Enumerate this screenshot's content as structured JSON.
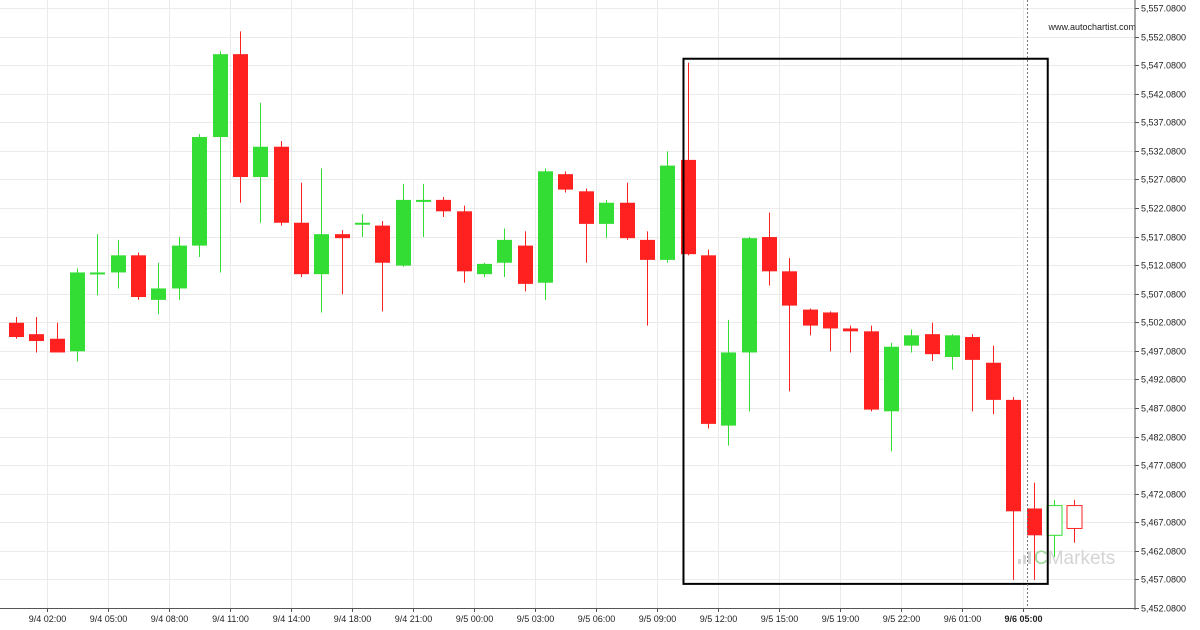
{
  "site": "www.autochartist.com",
  "watermark": {
    "brand_accent": "C",
    "brand_rest": "Markets"
  },
  "colors": {
    "up": "#33dd33",
    "down": "#ff2020",
    "pattern_box": "#000000",
    "grid": "#ebebeb",
    "current_candle_up": "#33dd33",
    "current_candle_down": "#ff2020"
  },
  "chart_data": {
    "type": "candlestick",
    "grid": true,
    "y_axis": {
      "position": "right",
      "ylim": [
        5452.08,
        5557.08
      ],
      "ticks": [
        "5,557.0800",
        "5,552.0800",
        "5,547.0800",
        "5,542.0800",
        "5,537.0800",
        "5,532.0800",
        "5,527.0800",
        "5,522.0800",
        "5,517.0800",
        "5,512.0800",
        "5,507.0800",
        "5,502.0800",
        "5,497.0800",
        "5,492.0800",
        "5,487.0800",
        "5,482.0800",
        "5,477.0800",
        "5,472.0800",
        "5,467.0800",
        "5,462.0800",
        "5,457.0800",
        "5,452.0800"
      ],
      "tick_values": [
        5557.08,
        5552.08,
        5547.08,
        5542.08,
        5537.08,
        5532.08,
        5527.08,
        5522.08,
        5517.08,
        5512.08,
        5507.08,
        5502.08,
        5497.08,
        5492.08,
        5487.08,
        5482.08,
        5477.08,
        5472.08,
        5467.08,
        5462.08,
        5457.08,
        5452.08
      ]
    },
    "x_axis": {
      "labels": [
        {
          "index": 1.5,
          "text": "9/4 02:00",
          "bold": false
        },
        {
          "index": 4.5,
          "text": "9/4 05:00",
          "bold": false
        },
        {
          "index": 7.5,
          "text": "9/4 08:00",
          "bold": false
        },
        {
          "index": 10.5,
          "text": "9/4 11:00",
          "bold": false
        },
        {
          "index": 13.5,
          "text": "9/4 14:00",
          "bold": false
        },
        {
          "index": 16.5,
          "text": "9/4 18:00",
          "bold": false
        },
        {
          "index": 19.5,
          "text": "9/4 21:00",
          "bold": false
        },
        {
          "index": 22.5,
          "text": "9/5 00:00",
          "bold": false
        },
        {
          "index": 25.5,
          "text": "9/5 03:00",
          "bold": false
        },
        {
          "index": 28.5,
          "text": "9/5 06:00",
          "bold": false
        },
        {
          "index": 31.5,
          "text": "9/5 09:00",
          "bold": false
        },
        {
          "index": 34.5,
          "text": "9/5 12:00",
          "bold": false
        },
        {
          "index": 37.5,
          "text": "9/5 15:00",
          "bold": false
        },
        {
          "index": 40.5,
          "text": "9/5 19:00",
          "bold": false
        },
        {
          "index": 43.5,
          "text": "9/5 22:00",
          "bold": false
        },
        {
          "index": 46.5,
          "text": "9/6 01:00",
          "bold": false
        },
        {
          "index": 49.5,
          "text": "9/6 05:00",
          "bold": true
        }
      ]
    },
    "candles": [
      {
        "o": 5502.0,
        "h": 5503.0,
        "l": 5499.2,
        "c": 5499.5
      },
      {
        "o": 5500.0,
        "h": 5503.0,
        "l": 5496.8,
        "c": 5498.8
      },
      {
        "o": 5499.2,
        "h": 5502.0,
        "l": 5496.8,
        "c": 5496.8
      },
      {
        "o": 5497.0,
        "h": 5511.5,
        "l": 5495.2,
        "c": 5510.8
      },
      {
        "o": 5510.8,
        "h": 5517.5,
        "l": 5506.8,
        "c": 5510.8
      },
      {
        "o": 5510.8,
        "h": 5516.5,
        "l": 5508.0,
        "c": 5513.8
      },
      {
        "o": 5513.8,
        "h": 5514.3,
        "l": 5506.0,
        "c": 5506.5
      },
      {
        "o": 5506.0,
        "h": 5512.5,
        "l": 5503.5,
        "c": 5508.0
      },
      {
        "o": 5508.0,
        "h": 5517.0,
        "l": 5506.0,
        "c": 5515.5
      },
      {
        "o": 5515.5,
        "h": 5535.0,
        "l": 5513.5,
        "c": 5534.5
      },
      {
        "o": 5534.5,
        "h": 5549.5,
        "l": 5510.8,
        "c": 5549.0
      },
      {
        "o": 5549.0,
        "h": 5553.0,
        "l": 5523.0,
        "c": 5527.5
      },
      {
        "o": 5527.5,
        "h": 5540.5,
        "l": 5519.5,
        "c": 5532.8
      },
      {
        "o": 5532.8,
        "h": 5533.8,
        "l": 5519.0,
        "c": 5519.5
      },
      {
        "o": 5519.5,
        "h": 5526.5,
        "l": 5510.0,
        "c": 5510.5
      },
      {
        "o": 5510.5,
        "h": 5529.0,
        "l": 5503.8,
        "c": 5517.5
      },
      {
        "o": 5517.5,
        "h": 5518.2,
        "l": 5507.0,
        "c": 5516.8
      },
      {
        "o": 5519.5,
        "h": 5521.0,
        "l": 5517.0,
        "c": 5519.5
      },
      {
        "o": 5519.0,
        "h": 5519.8,
        "l": 5504.0,
        "c": 5512.5
      },
      {
        "o": 5512.0,
        "h": 5526.3,
        "l": 5511.8,
        "c": 5523.5
      },
      {
        "o": 5523.5,
        "h": 5526.3,
        "l": 5517.0,
        "c": 5523.5
      },
      {
        "o": 5523.5,
        "h": 5524.0,
        "l": 5520.5,
        "c": 5521.5
      },
      {
        "o": 5521.5,
        "h": 5522.5,
        "l": 5509.0,
        "c": 5511.0
      },
      {
        "o": 5510.5,
        "h": 5512.5,
        "l": 5510.0,
        "c": 5512.3
      },
      {
        "o": 5512.5,
        "h": 5518.5,
        "l": 5510.0,
        "c": 5516.5
      },
      {
        "o": 5515.5,
        "h": 5518.0,
        "l": 5507.5,
        "c": 5508.8
      },
      {
        "o": 5509.0,
        "h": 5529.0,
        "l": 5506.0,
        "c": 5528.5
      },
      {
        "o": 5528.0,
        "h": 5528.5,
        "l": 5524.8,
        "c": 5525.3
      },
      {
        "o": 5525.0,
        "h": 5525.5,
        "l": 5512.5,
        "c": 5519.3
      },
      {
        "o": 5519.3,
        "h": 5523.5,
        "l": 5516.8,
        "c": 5523.0
      },
      {
        "o": 5523.0,
        "h": 5526.5,
        "l": 5516.5,
        "c": 5516.8
      },
      {
        "o": 5516.5,
        "h": 5518.0,
        "l": 5501.5,
        "c": 5513.0
      },
      {
        "o": 5513.0,
        "h": 5532.0,
        "l": 5512.5,
        "c": 5529.5
      },
      {
        "o": 5530.5,
        "h": 5547.5,
        "l": 5513.8,
        "c": 5514.0
      },
      {
        "o": 5513.8,
        "h": 5514.8,
        "l": 5483.5,
        "c": 5484.3
      },
      {
        "o": 5484.0,
        "h": 5502.5,
        "l": 5480.5,
        "c": 5496.8
      },
      {
        "o": 5496.8,
        "h": 5517.0,
        "l": 5486.5,
        "c": 5516.8
      },
      {
        "o": 5517.0,
        "h": 5521.3,
        "l": 5508.5,
        "c": 5511.0
      },
      {
        "o": 5511.0,
        "h": 5513.3,
        "l": 5490.0,
        "c": 5505.0
      },
      {
        "o": 5504.3,
        "h": 5504.5,
        "l": 5499.8,
        "c": 5501.5
      },
      {
        "o": 5503.8,
        "h": 5504.0,
        "l": 5497.0,
        "c": 5501.0
      },
      {
        "o": 5501.0,
        "h": 5501.5,
        "l": 5496.8,
        "c": 5500.5
      },
      {
        "o": 5500.5,
        "h": 5501.5,
        "l": 5486.5,
        "c": 5486.8
      },
      {
        "o": 5486.5,
        "h": 5498.5,
        "l": 5479.5,
        "c": 5497.8
      },
      {
        "o": 5498.0,
        "h": 5500.8,
        "l": 5496.8,
        "c": 5499.8
      },
      {
        "o": 5500.0,
        "h": 5502.0,
        "l": 5495.3,
        "c": 5496.5
      },
      {
        "o": 5496.0,
        "h": 5500.0,
        "l": 5493.8,
        "c": 5499.8
      },
      {
        "o": 5499.5,
        "h": 5500.0,
        "l": 5486.5,
        "c": 5495.5
      },
      {
        "o": 5495.0,
        "h": 5498.0,
        "l": 5486.0,
        "c": 5488.5
      },
      {
        "o": 5488.5,
        "h": 5489.0,
        "l": 5457.0,
        "c": 5469.0
      },
      {
        "o": 5469.5,
        "h": 5474.0,
        "l": 5457.0,
        "c": 5464.8
      },
      {
        "o": 5464.8,
        "h": 5471.0,
        "l": 5461.0,
        "c": 5470.0,
        "hollow": true
      },
      {
        "o": 5470.0,
        "h": 5471.0,
        "l": 5463.5,
        "c": 5466.0,
        "hollow": true
      }
    ],
    "pattern_box": {
      "from_index": 32.8,
      "to_index": 50.7,
      "top": 5548.2,
      "bottom": 5456.3
    },
    "current_time_index": 49.7
  }
}
